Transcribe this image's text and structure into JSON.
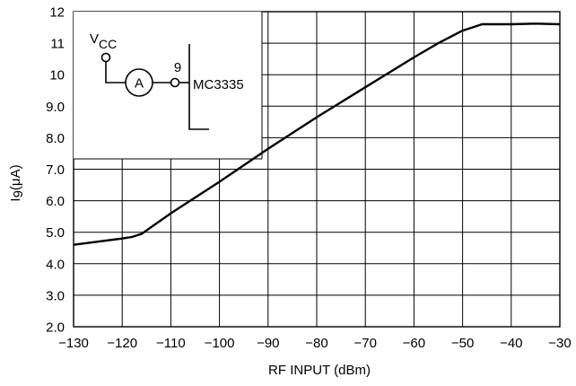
{
  "chart_data": {
    "type": "line",
    "title": "",
    "xlabel": "RF INPUT (dBm)",
    "ylabel": "I9(μA)",
    "ylabel_parts": {
      "main": "I",
      "sub": "9",
      "unit": "(μA)"
    },
    "xlim": [
      -130,
      -30
    ],
    "ylim": [
      2.0,
      12
    ],
    "x_ticks": [
      -130,
      -120,
      -110,
      -100,
      -90,
      -80,
      -70,
      -60,
      -50,
      -40,
      -30
    ],
    "x_tick_labels": [
      "−130",
      "−120",
      "−110",
      "−100",
      "−90",
      "−80",
      "−70",
      "−60",
      "−50",
      "−40",
      "−30"
    ],
    "y_ticks": [
      2,
      3,
      4,
      5,
      6,
      7,
      8,
      9,
      10,
      11,
      12
    ],
    "y_tick_labels": [
      "2.0",
      "3.0",
      "4.0",
      "5.0",
      "6.0",
      "7.0",
      "8.0",
      "9.0",
      "10",
      "11",
      "12"
    ],
    "grid": true,
    "series": [
      {
        "x": [
          -130,
          -125,
          -120,
          -118,
          -116,
          -110,
          -100,
          -90,
          -80,
          -70,
          -60,
          -55,
          -50,
          -48,
          -46,
          -40,
          -35,
          -30
        ],
        "y": [
          4.6,
          4.7,
          4.8,
          4.85,
          4.95,
          5.6,
          6.6,
          7.65,
          8.65,
          9.6,
          10.55,
          11.0,
          11.4,
          11.5,
          11.6,
          11.6,
          11.62,
          11.6
        ]
      }
    ],
    "inset_schematic": {
      "supply_label": "V",
      "supply_subscript": "CC",
      "meter_symbol": "A",
      "pin_number": "9",
      "chip_label": "MC3335"
    }
  }
}
